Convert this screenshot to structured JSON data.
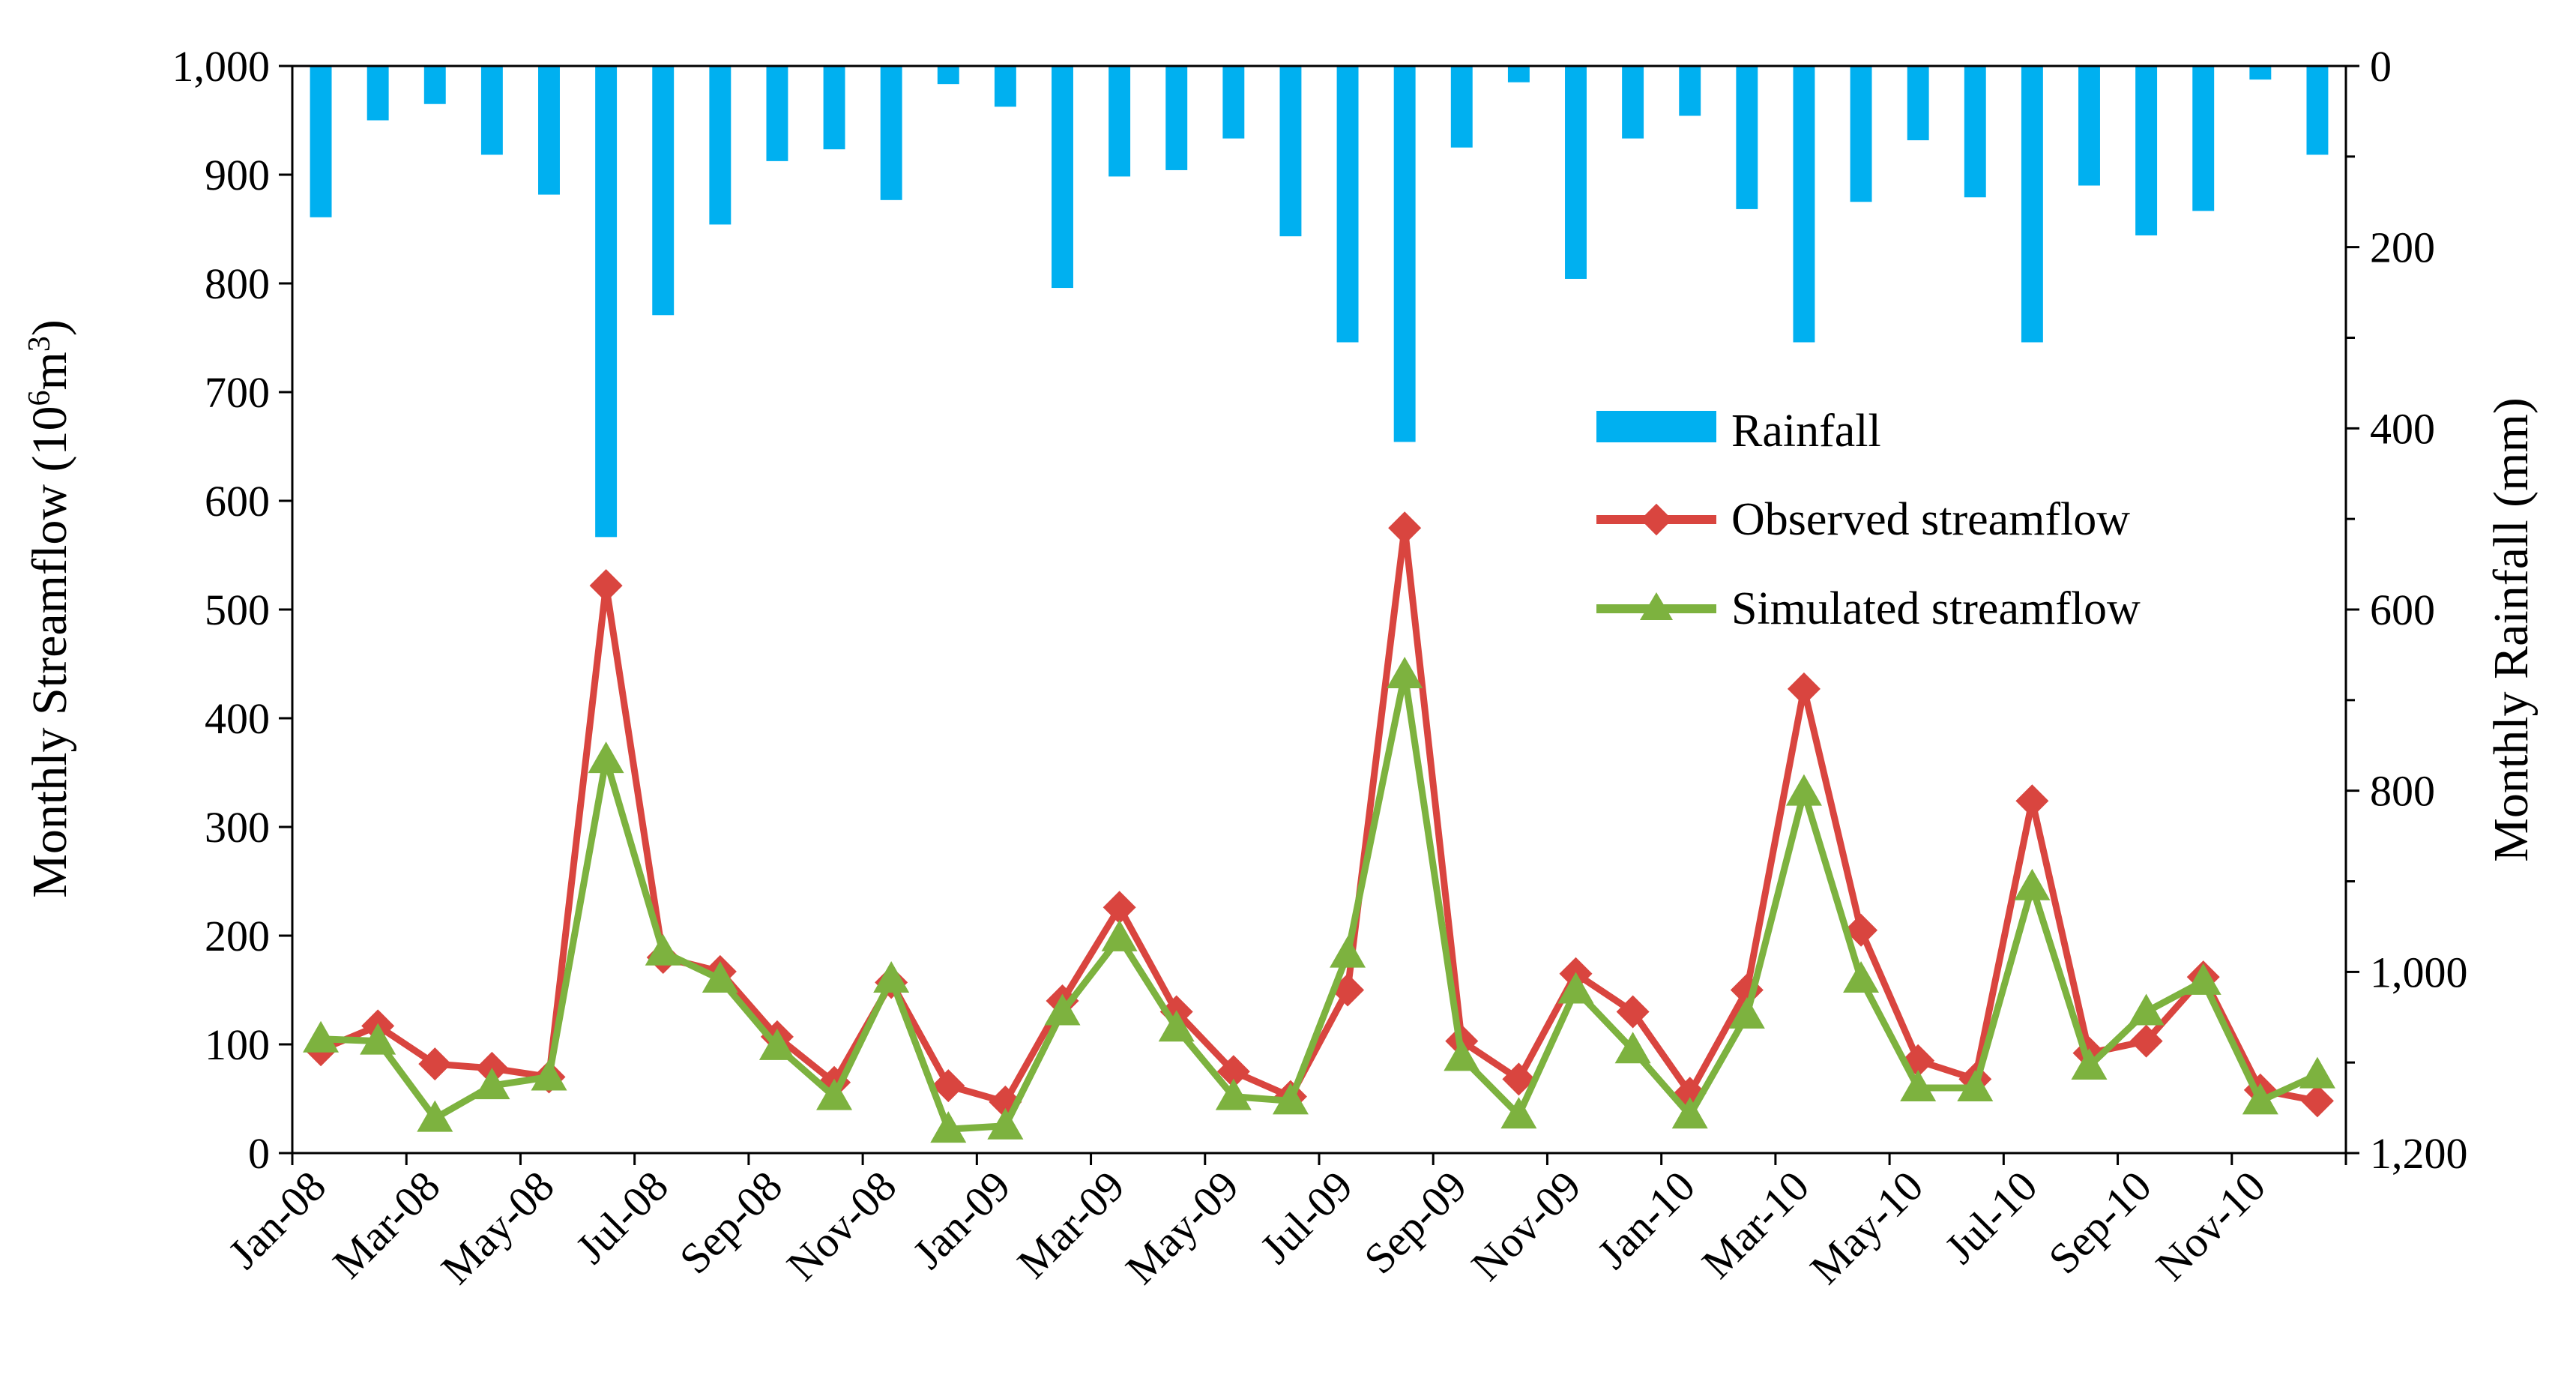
{
  "chart_data": {
    "type": "bar+line",
    "categories": [
      "Jan-08",
      "Feb-08",
      "Mar-08",
      "Apr-08",
      "May-08",
      "Jun-08",
      "Jul-08",
      "Aug-08",
      "Sep-08",
      "Oct-08",
      "Nov-08",
      "Dec-08",
      "Jan-09",
      "Feb-09",
      "Mar-09",
      "Apr-09",
      "May-09",
      "Jun-09",
      "Jul-09",
      "Aug-09",
      "Sep-09",
      "Oct-09",
      "Nov-09",
      "Dec-09",
      "Jan-10",
      "Feb-10",
      "Mar-10",
      "Apr-10",
      "May-10",
      "Jun-10",
      "Jul-10",
      "Aug-10",
      "Sep-10",
      "Oct-10",
      "Nov-10",
      "Dec-10"
    ],
    "x_tick_labels": [
      "Jan-08",
      "Mar-08",
      "May-08",
      "Jul-08",
      "Sep-08",
      "Nov-08",
      "Jan-09",
      "Mar-09",
      "May-09",
      "Jul-09",
      "Sep-09",
      "Nov-09",
      "Jan-10",
      "Mar-10",
      "May-10",
      "Jul-10",
      "Sep-10",
      "Nov-10"
    ],
    "series": [
      {
        "name": "Rainfall",
        "axis": "right",
        "kind": "bar",
        "values": [
          167,
          60,
          42,
          98,
          142,
          520,
          275,
          175,
          105,
          92,
          148,
          20,
          45,
          245,
          122,
          115,
          80,
          188,
          305,
          415,
          90,
          18,
          235,
          80,
          55,
          158,
          305,
          150,
          82,
          145,
          305,
          132,
          187,
          160,
          15,
          98
        ]
      },
      {
        "name": "Observed streamflow",
        "axis": "left",
        "kind": "line",
        "values": [
          95,
          117,
          82,
          78,
          70,
          522,
          180,
          167,
          107,
          65,
          157,
          62,
          47,
          140,
          226,
          130,
          75,
          52,
          150,
          575,
          103,
          68,
          165,
          130,
          55,
          150,
          427,
          205,
          85,
          68,
          324,
          92,
          103,
          162,
          58,
          48
        ]
      },
      {
        "name": "Simulated streamflow",
        "axis": "left",
        "kind": "line",
        "values": [
          105,
          103,
          32,
          62,
          70,
          362,
          185,
          160,
          98,
          52,
          160,
          22,
          25,
          130,
          198,
          115,
          52,
          48,
          183,
          440,
          88,
          35,
          150,
          95,
          35,
          127,
          332,
          160,
          60,
          60,
          245,
          80,
          130,
          158,
          48,
          72
        ]
      }
    ],
    "left_axis": {
      "label_main": "Monthly Streamflow (10",
      "label_sup": "6",
      "label_tail": "m",
      "label_sup2": "3",
      "label_end": ")",
      "min": 0,
      "max": 1000,
      "ticks": [
        "0",
        "100",
        "200",
        "300",
        "400",
        "500",
        "600",
        "700",
        "800",
        "900",
        "1,000"
      ]
    },
    "right_axis": {
      "label": "Monthly Rainfall (mm)",
      "inverted": true,
      "min": 0,
      "max": 1200,
      "ticks": [
        "0",
        "200",
        "400",
        "600",
        "800",
        "1,000",
        "1,200"
      ]
    },
    "legend": {
      "position": "center-right",
      "entries": [
        "Rainfall",
        "Observed streamflow",
        "Simulated streamflow"
      ]
    },
    "colors": {
      "rainfall": "#00B0F0",
      "observed": "#D9453F",
      "simulated": "#7DB23F"
    }
  }
}
